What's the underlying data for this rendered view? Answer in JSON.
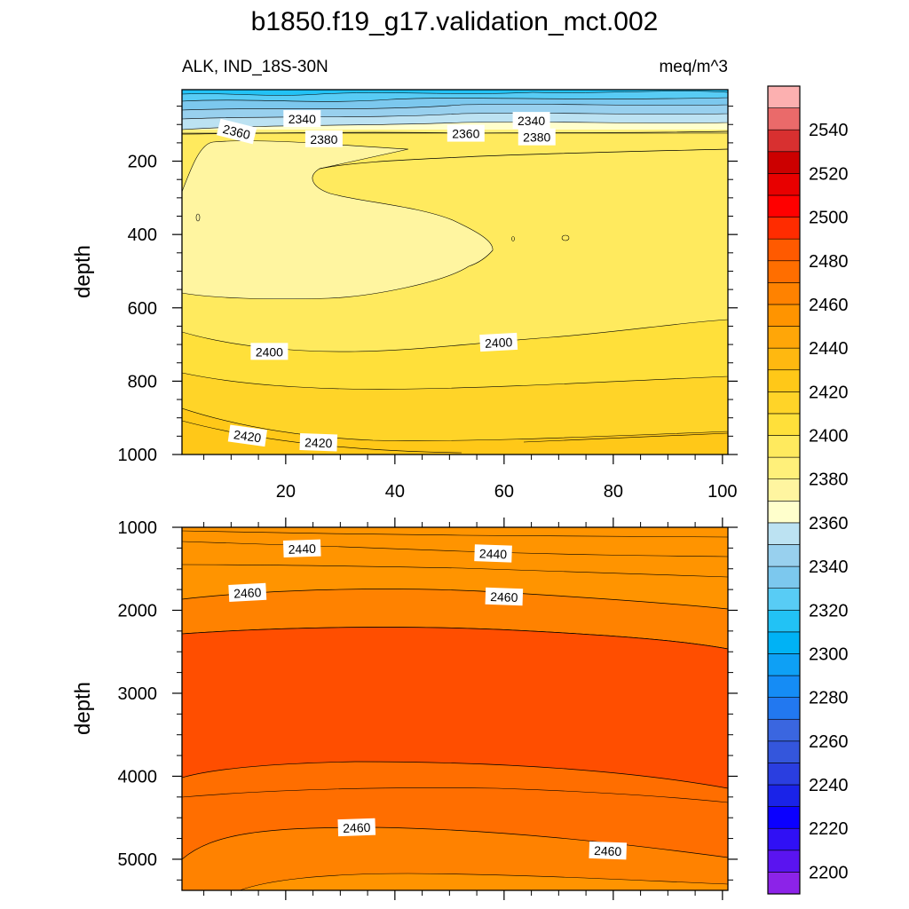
{
  "figure": {
    "title": "b1850.f19_g17.validation_mct.002",
    "subtitle_left": "ALK, IND_18S-30N",
    "subtitle_right": "meq/m^3"
  },
  "chart_data": [
    {
      "type": "heatmap",
      "panel": "upper",
      "variable": "ALK",
      "region": "IND_18S-30N",
      "units": "meq/m^3",
      "xlabel": "",
      "ylabel": "depth",
      "xlim": [
        1,
        101
      ],
      "ylim": [
        1000,
        5
      ],
      "y_reversed": true,
      "x_ticks": [
        "20",
        "40",
        "60",
        "80",
        "100"
      ],
      "y_ticks": [
        "200",
        "400",
        "600",
        "800",
        "1000"
      ],
      "contour_labels": [
        {
          "value": "2340",
          "x": 23,
          "y": 85
        },
        {
          "value": "2340",
          "x": 65,
          "y": 90
        },
        {
          "value": "2360",
          "x": 11,
          "y": 120,
          "angle": 14
        },
        {
          "value": "2360",
          "x": 53,
          "y": 125
        },
        {
          "value": "2380",
          "x": 27,
          "y": 140
        },
        {
          "value": "2380",
          "x": 66,
          "y": 135
        },
        {
          "value": "2400",
          "x": 17,
          "y": 720
        },
        {
          "value": "2400",
          "x": 59,
          "y": 695,
          "angle": -3
        },
        {
          "value": "2420",
          "x": 13,
          "y": 950,
          "angle": 8
        },
        {
          "value": "2420",
          "x": 26,
          "y": 968,
          "angle": 2
        }
      ],
      "grid": false
    },
    {
      "type": "heatmap",
      "panel": "lower",
      "variable": "ALK",
      "region": "IND_18S-30N",
      "units": "meq/m^3",
      "xlabel": "",
      "ylabel": "depth",
      "xlim": [
        1,
        101
      ],
      "ylim": [
        1000,
        5375
      ],
      "y_reversed": true,
      "y_ticks": [
        "1000",
        "2000",
        "3000",
        "4000",
        "5000"
      ],
      "contour_labels": [
        {
          "value": "2440",
          "x": 23,
          "y": 1260,
          "angle": -2
        },
        {
          "value": "2440",
          "x": 58,
          "y": 1320,
          "angle": 2
        },
        {
          "value": "2460",
          "x": 13,
          "y": 1790,
          "angle": -3
        },
        {
          "value": "2460",
          "x": 60,
          "y": 1840,
          "angle": 2
        },
        {
          "value": "2460",
          "x": 33,
          "y": 4620,
          "angle": -2
        },
        {
          "value": "2460",
          "x": 79,
          "y": 4900,
          "angle": 2
        }
      ],
      "grid": false
    }
  ],
  "colorbar": {
    "placement": "right",
    "levels": [
      2190,
      2200,
      2210,
      2220,
      2230,
      2240,
      2250,
      2260,
      2270,
      2280,
      2290,
      2300,
      2310,
      2320,
      2330,
      2340,
      2350,
      2360,
      2370,
      2380,
      2390,
      2400,
      2410,
      2420,
      2430,
      2440,
      2450,
      2460,
      2470,
      2480,
      2490,
      2500,
      2510,
      2520,
      2530,
      2540,
      2550,
      2560
    ],
    "labels": [
      "2200",
      "2220",
      "2240",
      "2260",
      "2280",
      "2300",
      "2320",
      "2340",
      "2360",
      "2380",
      "2400",
      "2420",
      "2440",
      "2460",
      "2480",
      "2500",
      "2520",
      "2540"
    ],
    "colors": [
      "#8c23e8",
      "#5a14f0",
      "#3010f5",
      "#0b00ff",
      "#1a23e8",
      "#2a3ee0",
      "#3456dc",
      "#3a66e0",
      "#2278f0",
      "#158cf5",
      "#0ea0f5",
      "#00b2f5",
      "#22c2f5",
      "#58ccf5",
      "#7cc8ee",
      "#98d0ee",
      "#bce2f2",
      "#ffffcc",
      "#fff5a0",
      "#fff07a",
      "#ffea5e",
      "#ffe03a",
      "#ffd428",
      "#ffc818",
      "#ffb810",
      "#ffa608",
      "#ff9400",
      "#ff8200",
      "#ff6e00",
      "#ff5a00",
      "#ff2c00",
      "#ff0000",
      "#e80000",
      "#cc0000",
      "#d83030",
      "#ea6a6a",
      "#fcb0b0"
    ]
  },
  "fill_colors": {
    "surface_blue": "#22b6f2",
    "shallow_blue": "#7cc8ee",
    "pale_yellow": "#ffffcc",
    "light_yellow": "#fff5a0",
    "yellow": "#fff07a",
    "deep_yellow": "#ffe03a",
    "gold": "#ffd428",
    "amber": "#ffc818",
    "orange_2440": "#ffa608",
    "orange_2450": "#ff9400",
    "orange_2460": "#ff8200",
    "orange_2470": "#ff6e00",
    "core_red_orange": "#ff4e00"
  }
}
